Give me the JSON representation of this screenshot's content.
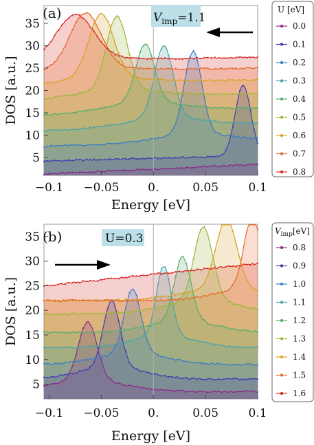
{
  "chart_data": [
    {
      "type": "area",
      "panel_label": "(a)",
      "xlabel": "Energy [eV]",
      "ylabel": "DOS [a.u.]",
      "xlim": [
        -0.105,
        0.1
      ],
      "ylim": [
        1,
        39
      ],
      "x_ticks": [
        -0.1,
        -0.05,
        0,
        0.05,
        0.1
      ],
      "x_tick_labels": [
        "−0.1",
        "−0.05",
        "0.",
        "0.05",
        "0.1"
      ],
      "y_ticks": [
        5,
        10,
        15,
        20,
        25,
        30,
        35
      ],
      "y_tick_labels": [
        "5",
        "10",
        "15",
        "20",
        "25",
        "30",
        "35"
      ],
      "annotation": {
        "symbol": "V",
        "subscript": "imp",
        "value": "=1.1"
      },
      "arrow_direction": "left",
      "legend_title": "U [eV]",
      "legend_position": "right",
      "series": [
        {
          "name": "0.0",
          "color": "#8b2c8c",
          "base": 1.3,
          "rise": 2.2,
          "peak_x": 0.12,
          "peak_h": 0,
          "width": 0.01,
          "shoulder": 0
        },
        {
          "name": "0.1",
          "color": "#3f3fb0",
          "base": 4.2,
          "rise": 1.2,
          "peak_x": 0.086,
          "peak_h": 15.8,
          "width": 0.0075,
          "shoulder": 0
        },
        {
          "name": "0.2",
          "color": "#3d7cc4",
          "base": 7.5,
          "rise": 1.5,
          "peak_x": 0.038,
          "peak_h": 18.5,
          "width": 0.0085,
          "shoulder": 0.5
        },
        {
          "name": "0.3",
          "color": "#4aa3a8",
          "base": 11.0,
          "rise": 1.6,
          "peak_x": 0.01,
          "peak_h": 16.0,
          "width": 0.009,
          "shoulder": 0.7
        },
        {
          "name": "0.4",
          "color": "#5aae6a",
          "base": 14.5,
          "rise": 1.6,
          "peak_x": -0.008,
          "peak_h": 13.0,
          "width": 0.009,
          "shoulder": 0.9
        },
        {
          "name": "0.5",
          "color": "#9cb63e",
          "base": 17.8,
          "rise": 1.6,
          "peak_x": -0.035,
          "peak_h": 16.5,
          "width": 0.01,
          "shoulder": 0.6
        },
        {
          "name": "0.6",
          "color": "#d8a227",
          "base": 21.0,
          "rise": 1.4,
          "peak_x": -0.05,
          "peak_h": 14.5,
          "width": 0.012,
          "shoulder": 0.5
        },
        {
          "name": "0.7",
          "color": "#e46a2d",
          "base": 23.7,
          "rise": 1.3,
          "peak_x": -0.065,
          "peak_h": 12.5,
          "width": 0.015,
          "shoulder": 0.4
        },
        {
          "name": "0.8",
          "color": "#d82a26",
          "base": 26.2,
          "rise": 1.2,
          "peak_x": -0.075,
          "peak_h": 10.0,
          "width": 0.018,
          "shoulder": 0.3
        }
      ]
    },
    {
      "type": "area",
      "panel_label": "(b)",
      "xlabel": "Energy [eV]",
      "ylabel": "DOS [a.u.]",
      "xlim": [
        -0.105,
        0.1
      ],
      "ylim": [
        2,
        37.5
      ],
      "x_ticks": [
        -0.1,
        -0.05,
        0,
        0.05,
        0.1
      ],
      "x_tick_labels": [
        "−0.1",
        "−0.05",
        "0.",
        "0.05",
        "0.1"
      ],
      "y_ticks": [
        5,
        10,
        15,
        20,
        25,
        30,
        35
      ],
      "y_tick_labels": [
        "5",
        "10",
        "15",
        "20",
        "25",
        "30",
        "35"
      ],
      "annotation": {
        "symbol": "U",
        "subscript": "",
        "value": "=0.3"
      },
      "arrow_direction": "right",
      "legend_title": "V",
      "legend_title_sub": "imp",
      "legend_title_unit": "[eV]",
      "legend_position": "right",
      "series": [
        {
          "name": "0.8",
          "color": "#8b2c8c",
          "base": 3.5,
          "rise": 0,
          "peak_x": -0.063,
          "peak_h": 12.0,
          "width": 0.009,
          "shoulder": 1.0
        },
        {
          "name": "0.9",
          "color": "#3f3fb0",
          "base": 6.0,
          "rise": 0,
          "peak_x": -0.04,
          "peak_h": 13.5,
          "width": 0.008,
          "shoulder": 1.0
        },
        {
          "name": "1.0",
          "color": "#3d7cc4",
          "base": 9.0,
          "rise": 0,
          "peak_x": -0.02,
          "peak_h": 13.0,
          "width": 0.008,
          "shoulder": 1.0
        },
        {
          "name": "1.1",
          "color": "#4aa3a8",
          "base": 12.5,
          "rise": 0,
          "peak_x": 0.01,
          "peak_h": 14.0,
          "width": 0.007,
          "shoulder": 1.0
        },
        {
          "name": "1.2",
          "color": "#5aae6a",
          "base": 15.5,
          "rise": 0,
          "peak_x": 0.028,
          "peak_h": 13.0,
          "width": 0.008,
          "shoulder": 1.0
        },
        {
          "name": "1.3",
          "color": "#9cb63e",
          "base": 19.3,
          "rise": 0,
          "peak_x": 0.048,
          "peak_h": 15.0,
          "width": 0.009,
          "shoulder": 1.0
        },
        {
          "name": "1.4",
          "color": "#d8a227",
          "base": 22.0,
          "rise": 0,
          "peak_x": 0.07,
          "peak_h": 14.0,
          "width": 0.01,
          "shoulder": 1.0
        },
        {
          "name": "1.5",
          "color": "#e46a2d",
          "base": 22.0,
          "rise": 0,
          "peak_x": 0.095,
          "peak_h": 14.5,
          "width": 0.008,
          "shoulder": 1.0
        },
        {
          "name": "1.6",
          "color": "#d82a26",
          "base": 25.0,
          "rise": 4.5,
          "peak_x": 0.2,
          "peak_h": 0,
          "width": 0.01,
          "shoulder": 0
        }
      ]
    }
  ]
}
